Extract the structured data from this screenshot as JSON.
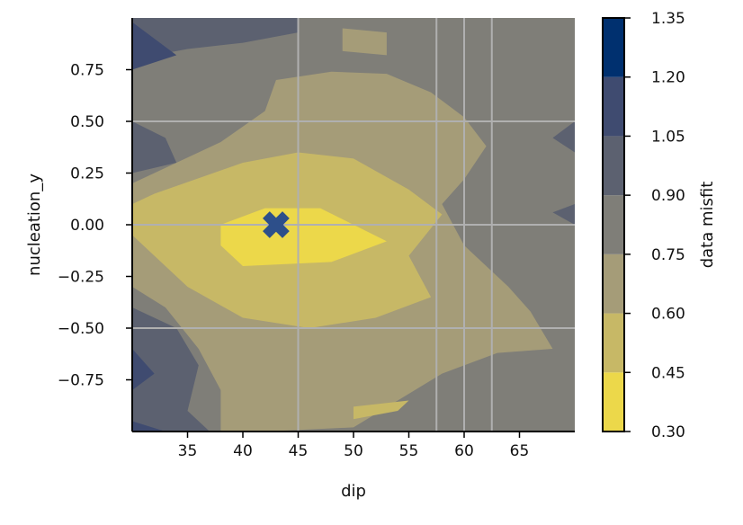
{
  "chart_data": {
    "type": "contourf",
    "title": "",
    "xlabel": "dip",
    "ylabel": "nucleation_y",
    "colorbar_label": "data misfit",
    "xlim": [
      30,
      70
    ],
    "ylim": [
      -1.0,
      1.0
    ],
    "x_ticks": [
      35,
      40,
      45,
      50,
      55,
      60,
      65
    ],
    "x_tick_labels": [
      "35",
      "40",
      "45",
      "50",
      "55",
      "60",
      "65"
    ],
    "y_ticks": [
      0.75,
      0.5,
      0.25,
      0.0,
      -0.25,
      -0.5,
      -0.75
    ],
    "y_tick_labels": [
      "0.75",
      "0.50",
      "0.25",
      "0.00",
      "−0.25",
      "−0.50",
      "−0.75"
    ],
    "grid": true,
    "grid_x": [
      45,
      57.5,
      60,
      62.5
    ],
    "grid_y": [
      0.5,
      0.0,
      -0.5
    ],
    "grid_color": "#b0b0b0",
    "levels": [
      0.3,
      0.45,
      0.6,
      0.75,
      0.9,
      1.05,
      1.2,
      1.35
    ],
    "level_labels": [
      "0.30",
      "0.45",
      "0.60",
      "0.75",
      "0.90",
      "1.05",
      "1.20",
      "1.35"
    ],
    "level_colors": [
      "#ecd84a",
      "#c7b866",
      "#a59c78",
      "#7f7e78",
      "#5c6170",
      "#3f4b70",
      "#00306f"
    ],
    "marker": {
      "symbol": "X",
      "x": 43,
      "y": 0.0,
      "color": "#2d4f8a"
    },
    "regions": [
      {
        "level_index": 3,
        "points": [
          [
            30,
            -1.0
          ],
          [
            70,
            -1.0
          ],
          [
            70,
            1.0
          ],
          [
            30,
            1.0
          ]
        ]
      },
      {
        "level_index": 4,
        "points": [
          [
            30,
            1.0
          ],
          [
            45,
            1.0
          ],
          [
            45,
            0.93
          ],
          [
            40,
            0.88
          ],
          [
            35,
            0.85
          ],
          [
            30,
            0.8
          ]
        ]
      },
      {
        "level_index": 4,
        "points": [
          [
            30,
            0.5
          ],
          [
            33,
            0.42
          ],
          [
            34,
            0.3
          ],
          [
            30,
            0.25
          ]
        ]
      },
      {
        "level_index": 4,
        "points": [
          [
            30,
            -0.4
          ],
          [
            34,
            -0.5
          ],
          [
            36,
            -0.68
          ],
          [
            35,
            -0.9
          ],
          [
            37,
            -1.0
          ],
          [
            30,
            -1.0
          ]
        ]
      },
      {
        "level_index": 4,
        "points": [
          [
            70,
            0.0
          ],
          [
            68,
            0.06
          ],
          [
            70,
            0.1
          ]
        ]
      },
      {
        "level_index": 4,
        "points": [
          [
            70,
            0.5
          ],
          [
            68,
            0.42
          ],
          [
            70,
            0.35
          ]
        ]
      },
      {
        "level_index": 5,
        "points": [
          [
            30,
            0.98
          ],
          [
            34,
            0.82
          ],
          [
            30,
            0.75
          ]
        ]
      },
      {
        "level_index": 5,
        "points": [
          [
            30,
            -0.6
          ],
          [
            32,
            -0.72
          ],
          [
            30,
            -0.8
          ]
        ]
      },
      {
        "level_index": 5,
        "points": [
          [
            30,
            -0.95
          ],
          [
            33,
            -1.0
          ],
          [
            30,
            -1.0
          ]
        ]
      },
      {
        "level_index": 2,
        "points": [
          [
            43,
            0.7
          ],
          [
            48,
            0.74
          ],
          [
            53,
            0.73
          ],
          [
            57,
            0.64
          ],
          [
            60,
            0.52
          ],
          [
            62,
            0.38
          ],
          [
            60,
            0.22
          ],
          [
            58,
            0.1
          ],
          [
            60,
            -0.1
          ],
          [
            64,
            -0.3
          ],
          [
            66,
            -0.42
          ],
          [
            68,
            -0.6
          ],
          [
            63,
            -0.62
          ],
          [
            58,
            -0.72
          ],
          [
            54,
            -0.85
          ],
          [
            50,
            -0.98
          ],
          [
            42,
            -1.0
          ],
          [
            38,
            -1.0
          ],
          [
            38,
            -0.8
          ],
          [
            36,
            -0.6
          ],
          [
            33,
            -0.4
          ],
          [
            30,
            -0.3
          ],
          [
            30,
            0.2
          ],
          [
            34,
            0.3
          ],
          [
            38,
            0.4
          ],
          [
            42,
            0.55
          ]
        ]
      },
      {
        "level_index": 2,
        "points": [
          [
            49,
            0.95
          ],
          [
            53,
            0.93
          ],
          [
            53,
            0.82
          ],
          [
            49,
            0.84
          ]
        ]
      },
      {
        "level_index": 1,
        "points": [
          [
            32,
            0.15
          ],
          [
            40,
            0.3
          ],
          [
            45,
            0.35
          ],
          [
            50,
            0.32
          ],
          [
            55,
            0.17
          ],
          [
            58,
            0.05
          ],
          [
            55,
            -0.15
          ],
          [
            57,
            -0.35
          ],
          [
            52,
            -0.45
          ],
          [
            46,
            -0.5
          ],
          [
            40,
            -0.45
          ],
          [
            35,
            -0.3
          ],
          [
            30,
            -0.05
          ],
          [
            30,
            0.1
          ]
        ]
      },
      {
        "level_index": 1,
        "points": [
          [
            50,
            -0.88
          ],
          [
            55,
            -0.85
          ],
          [
            54,
            -0.9
          ],
          [
            50,
            -0.94
          ]
        ]
      },
      {
        "level_index": 0,
        "points": [
          [
            38,
            0.0
          ],
          [
            42,
            0.08
          ],
          [
            47,
            0.08
          ],
          [
            53,
            -0.08
          ],
          [
            48,
            -0.18
          ],
          [
            40,
            -0.2
          ],
          [
            38,
            -0.1
          ]
        ]
      }
    ]
  }
}
